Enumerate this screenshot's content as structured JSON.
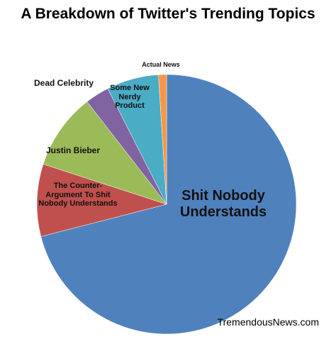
{
  "chart_data": {
    "type": "pie",
    "title": "A Breakdown of Twitter's Trending Topics",
    "categories": [
      "Shit Nobody\nUnderstands",
      "The Counter-\nArgument To Shit\nNobody Understands",
      "Justin Bieber",
      "Dead Celebrity",
      "Some New\nNerdy\nProduct",
      "Actual News"
    ],
    "values": [
      71,
      9,
      9.5,
      3,
      6.5,
      1
    ],
    "colors": [
      "#4f81bd",
      "#c0504d",
      "#9bbb59",
      "#8064a2",
      "#4bacc6",
      "#f79646"
    ],
    "watermark": "TremendousNews.com"
  }
}
